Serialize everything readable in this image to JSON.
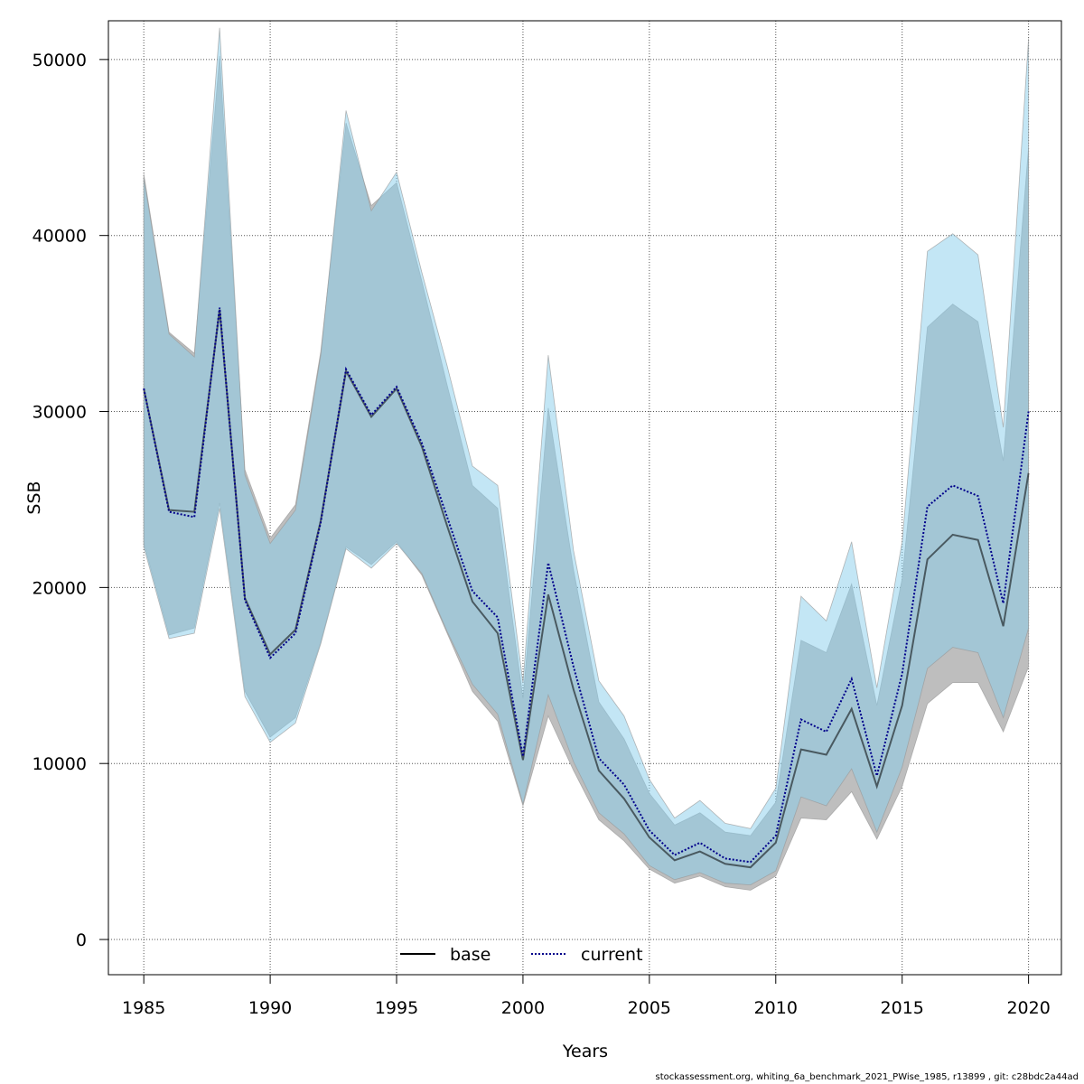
{
  "chart_data": {
    "type": "area",
    "title": "",
    "xlabel": "Years",
    "ylabel": "SSB",
    "xlim": [
      1983.6,
      2021.3
    ],
    "ylim": [
      -2000,
      52200
    ],
    "x_ticks": [
      1985,
      1990,
      1995,
      2000,
      2005,
      2010,
      2015,
      2020
    ],
    "y_ticks": [
      0,
      10000,
      20000,
      30000,
      40000,
      50000
    ],
    "grid": true,
    "legend_position": "bottom",
    "footnote": "stockassessment.org, whiting_6a_benchmark_2021_PWise_1985, r13899 , git: c28bdc2a44ad",
    "colors": {
      "base_band": "#bebebe",
      "current_band": "#87ceeb",
      "base_line": "#000000",
      "current_line": "#00008b"
    },
    "x": [
      1985,
      1986,
      1987,
      1988,
      1989,
      1990,
      1991,
      1992,
      1993,
      1994,
      1995,
      1996,
      1997,
      1998,
      1999,
      2000,
      2001,
      2002,
      2003,
      2004,
      2005,
      2006,
      2007,
      2008,
      2009,
      2010,
      2011,
      2012,
      2013,
      2014,
      2015,
      2016,
      2017,
      2018,
      2019,
      2020
    ],
    "series": [
      {
        "name": "base",
        "line_style": "solid",
        "values": [
          31300,
          24400,
          24300,
          35800,
          19400,
          16200,
          17600,
          23800,
          32300,
          29700,
          31300,
          28000,
          23500,
          19200,
          17400,
          10200,
          19600,
          14200,
          9600,
          8000,
          5800,
          4500,
          5000,
          4300,
          4100,
          5500,
          10800,
          10500,
          13100,
          8700,
          13300,
          21600,
          23000,
          22700,
          17800,
          26500
        ],
        "lower": [
          22500,
          17300,
          17700,
          24800,
          14100,
          11500,
          12600,
          16900,
          22300,
          21300,
          22600,
          20700,
          17400,
          14100,
          12400,
          7600,
          12700,
          9600,
          6800,
          5600,
          4000,
          3200,
          3600,
          3000,
          2800,
          3600,
          6900,
          6800,
          8400,
          5700,
          8700,
          13400,
          14600,
          14600,
          11800,
          15500
        ],
        "upper": [
          43500,
          34500,
          33300,
          50200,
          26700,
          22800,
          24700,
          33400,
          46400,
          41700,
          43000,
          37400,
          31500,
          25800,
          24500,
          13700,
          30200,
          21000,
          13500,
          11400,
          8300,
          6500,
          7200,
          6100,
          5900,
          7800,
          17000,
          16300,
          20200,
          13300,
          20500,
          34800,
          36100,
          35100,
          27200,
          45000
        ]
      },
      {
        "name": "current",
        "line_style": "dotted",
        "values": [
          31300,
          24300,
          24000,
          35900,
          19300,
          16000,
          17400,
          23700,
          32400,
          29800,
          31400,
          28200,
          24000,
          19800,
          18300,
          10400,
          21400,
          15500,
          10300,
          8800,
          6200,
          4800,
          5500,
          4600,
          4400,
          5900,
          12500,
          11800,
          14800,
          9300,
          15100,
          24600,
          25800,
          25200,
          19100,
          30000
        ],
        "lower": [
          22300,
          17100,
          17400,
          24500,
          13800,
          11200,
          12300,
          16800,
          22200,
          21100,
          22500,
          20800,
          17500,
          14500,
          12800,
          7700,
          13900,
          10100,
          7200,
          6000,
          4200,
          3400,
          3800,
          3200,
          3100,
          3900,
          8100,
          7600,
          9700,
          6100,
          9800,
          15400,
          16600,
          16300,
          12600,
          17700
        ],
        "upper": [
          43300,
          34400,
          33100,
          51800,
          26400,
          22500,
          24400,
          33200,
          47100,
          41400,
          43600,
          37900,
          32600,
          26900,
          25800,
          14600,
          33200,
          22100,
          14700,
          12700,
          9100,
          6900,
          7900,
          6600,
          6300,
          8600,
          19500,
          18100,
          22600,
          14300,
          22600,
          39100,
          40100,
          38900,
          29100,
          51200
        ]
      }
    ]
  }
}
